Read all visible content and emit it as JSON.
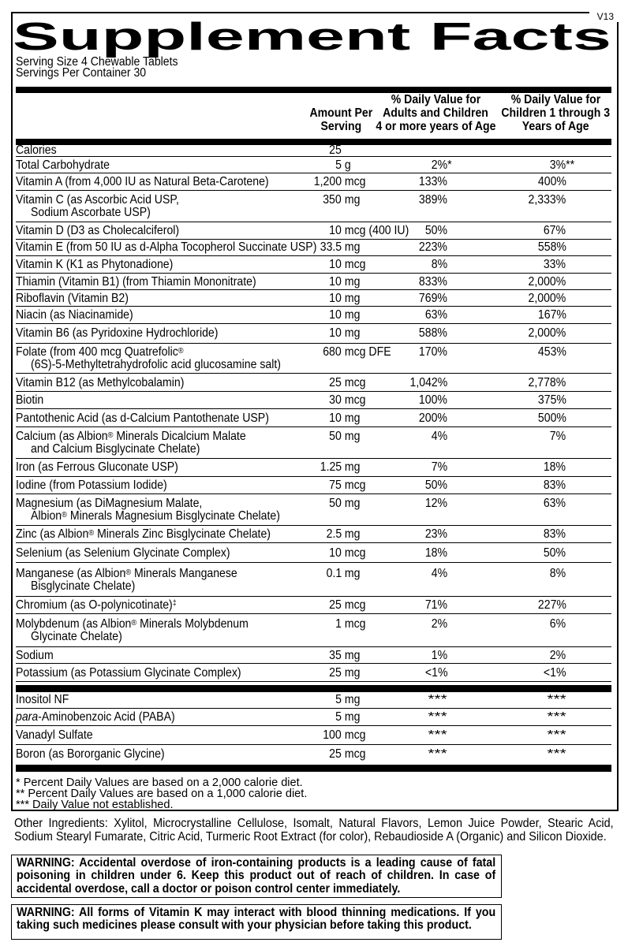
{
  "version": "V13",
  "title": "Supplement Facts",
  "serving": {
    "size": "Serving Size 4 Chewable Tablets",
    "per_container": "Servings Per Container 30"
  },
  "columns": {
    "amount": [
      "Amount Per",
      "Serving"
    ],
    "adults": [
      "% Daily Value for",
      "Adults and Children",
      "4 or more years of Age"
    ],
    "children": [
      "% Daily Value for",
      "Children 1 through 3",
      "Years of Age"
    ]
  },
  "rows": [
    {
      "name_lines": [
        "Calories"
      ],
      "amount": "25",
      "unit": "",
      "adults": "",
      "children": "",
      "size": "calories"
    },
    {
      "name_lines": [
        "Total Carbohydrate"
      ],
      "amount": "5",
      "unit": " g",
      "adults": "2%*",
      "children": "3%**"
    },
    {
      "name_lines": [
        "Vitamin A (from 4,000 IU as Natural Beta-Carotene)"
      ],
      "amount": "1,200",
      "unit": " mcg",
      "adults": "133%",
      "children": "400%"
    },
    {
      "name_lines": [
        "Vitamin C (as Ascorbic Acid USP,",
        "Sodium Ascorbate USP)"
      ],
      "amount": "350",
      "unit": " mg",
      "adults": "389%",
      "children": "2,333%"
    },
    {
      "name_lines": [
        "Vitamin D (D3 as Cholecalciferol)"
      ],
      "amount": "10",
      "unit": " mcg (400 IU)",
      "adults": "50%",
      "children": "67%"
    },
    {
      "name_lines": [
        "Vitamin E (from 50 IU as d-Alpha Tocopherol Succinate USP)"
      ],
      "amount": "33.5",
      "unit": " mg",
      "adults": "223%",
      "children": "558%"
    },
    {
      "name_lines": [
        "Vitamin K (K1 as Phytonadione)"
      ],
      "amount": "10",
      "unit": " mcg",
      "adults": "8%",
      "children": "33%"
    },
    {
      "name_lines": [
        "Thiamin (Vitamin B1) (from Thiamin Mononitrate)"
      ],
      "amount": "10",
      "unit": " mg",
      "adults": "833%",
      "children": "2,000%"
    },
    {
      "name_lines": [
        "Riboflavin (Vitamin B2)"
      ],
      "amount": "10",
      "unit": " mg",
      "adults": "769%",
      "children": "2,000%"
    },
    {
      "name_lines": [
        "Niacin (as Niacinamide)"
      ],
      "amount": "10",
      "unit": " mg",
      "adults": "63%",
      "children": "167%"
    },
    {
      "name_lines": [
        "Vitamin B6 (as Pyridoxine Hydrochloride)"
      ],
      "amount": "10",
      "unit": " mg",
      "adults": "588%",
      "children": "2,000%"
    },
    {
      "name_lines": [
        "Folate (from 400 mcg Quatrefolic®",
        "(6S)-5-Methyltetrahydrofolic acid glucosamine salt)"
      ],
      "amount": "680",
      "unit": " mcg DFE",
      "adults": "170%",
      "children": "453%"
    },
    {
      "name_lines": [
        "Vitamin B12 (as Methylcobalamin)"
      ],
      "amount": "25",
      "unit": " mcg",
      "adults": "1,042%",
      "children": "2,778%"
    },
    {
      "name_lines": [
        "Biotin"
      ],
      "amount": "30",
      "unit": " mcg",
      "adults": "100%",
      "children": "375%"
    },
    {
      "name_lines": [
        "Pantothenic Acid (as d-Calcium Pantothenate USP)"
      ],
      "amount": "10",
      "unit": " mg",
      "adults": "200%",
      "children": "500%"
    },
    {
      "name_lines": [
        "Calcium (as Albion® Minerals Dicalcium Malate",
        "and Calcium Bisglycinate Chelate)"
      ],
      "amount": "50",
      "unit": " mg",
      "adults": "4%",
      "children": "7%"
    },
    {
      "name_lines": [
        "Iron (as Ferrous Gluconate USP)"
      ],
      "amount": "1.25",
      "unit": " mg",
      "adults": "7%",
      "children": "18%"
    },
    {
      "name_lines": [
        "Iodine (from Potassium Iodide)"
      ],
      "amount": "75",
      "unit": " mcg",
      "adults": "50%",
      "children": "83%"
    },
    {
      "name_lines": [
        "Magnesium (as DiMagnesium Malate,",
        "Albion® Minerals Magnesium Bisglycinate Chelate)"
      ],
      "amount": "50",
      "unit": " mg",
      "adults": "12%",
      "children": "63%"
    },
    {
      "name_lines": [
        "Zinc (as Albion® Minerals Zinc Bisglycinate Chelate)"
      ],
      "amount": "2.5",
      "unit": " mg",
      "adults": "23%",
      "children": "83%"
    },
    {
      "name_lines": [
        "Selenium (as Selenium Glycinate Complex)"
      ],
      "amount": "10",
      "unit": " mcg",
      "adults": "18%",
      "children": "50%"
    },
    {
      "name_lines": [
        "Manganese (as Albion® Minerals Manganese",
        "Bisglycinate Chelate)"
      ],
      "amount": "0.1",
      "unit": " mg",
      "adults": "4%",
      "children": "8%"
    },
    {
      "name_lines": [
        "Chromium (as O-polynicotinate)‡"
      ],
      "amount": "25",
      "unit": " mcg",
      "adults": "71%",
      "children": "227%"
    },
    {
      "name_lines": [
        "Molybdenum (as Albion® Minerals Molybdenum",
        "Glycinate Chelate)"
      ],
      "amount": "1",
      "unit": " mcg",
      "adults": "2%",
      "children": "6%"
    },
    {
      "name_lines": [
        "Sodium"
      ],
      "amount": "35",
      "unit": " mg",
      "adults": "1%",
      "children": "2%"
    },
    {
      "name_lines": [
        "Potassium (as Potassium Glycinate Complex)"
      ],
      "amount": "25",
      "unit": " mg",
      "adults": "<1%",
      "children": "<1%"
    }
  ],
  "rows_secondary": [
    {
      "name_lines": [
        "Inositol NF"
      ],
      "amount": "5",
      "unit": " mg",
      "adults": "***",
      "children": "***"
    },
    {
      "name_lines": [
        "para-Aminobenzoic Acid (PABA)"
      ],
      "italic_prefix": "para",
      "amount": "5",
      "unit": " mg",
      "adults": "***",
      "children": "***"
    },
    {
      "name_lines": [
        "Vanadyl Sulfate"
      ],
      "amount": "100",
      "unit": " mcg",
      "adults": "***",
      "children": "***"
    },
    {
      "name_lines": [
        "Boron (as Bororganic Glycine)"
      ],
      "amount": "25",
      "unit": " mcg",
      "adults": "***",
      "children": "***"
    }
  ],
  "footnotes": [
    "* Percent Daily Values are based on a 2,000 calorie diet.",
    "** Percent Daily Values are based on a 1,000 calorie diet.",
    "*** Daily Value not established."
  ],
  "other_ingredients_lines": [
    "Other Ingredients: Xylitol, Microcrystalline Cellulose, Isomalt, Natural Flavors, Lemon Juice Powder, Stearic Acid,",
    "Sodium Stearyl Fumarate, Citric Acid, Turmeric Root Extract (for color), Rebaudioside A (Organic) and Silicon Dioxide."
  ],
  "warning_iron_lines": [
    "WARNING: Accidental overdose of iron-containing products is a leading cause of fatal",
    "poisoning in children under 6. Keep this product out of reach of children. In case of",
    "accidental overdose, call a doctor or poison control center immediately."
  ],
  "warning_vitamin_k_lines": [
    "WARNING: All forms of Vitamin K may interact with blood thinning medications. If you are",
    "taking such medicines please consult with your physician before taking this product."
  ],
  "colors": {
    "ink": "#000000",
    "paper": "#ffffff"
  }
}
